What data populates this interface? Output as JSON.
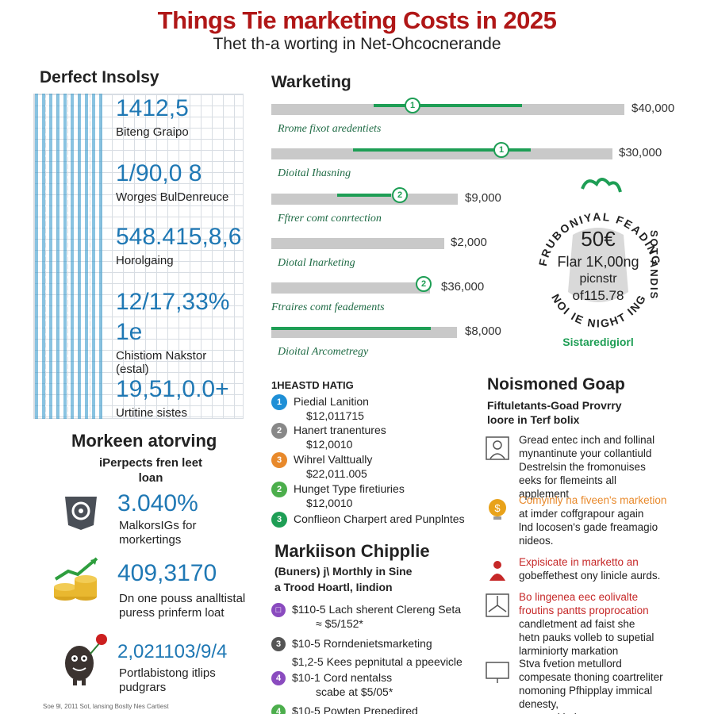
{
  "header": {
    "title": "Things Tie marketing Costs in 2025",
    "subtitle": "Thet th-a worting in Net-Ohcocnerande"
  },
  "left_panel": {
    "title": "Derfect Insolsy",
    "stats": [
      {
        "value": "1412,5",
        "label": "Biteng Graipo"
      },
      {
        "value": "1/90,0 8",
        "label": "Worges BulDenreuce"
      },
      {
        "value": "548.415,8,6",
        "label": "Horolgaing"
      },
      {
        "value": "12/17,33%",
        "label": ""
      },
      {
        "value": "1e",
        "label": "Chistiom Nakstor\n(estal)"
      },
      {
        "value": "19,51,0.0+",
        "label": "Urtitine sistes"
      }
    ]
  },
  "lower_left": {
    "title": "Morkeen atorving",
    "subtitle": "iPerpects fren leet loan",
    "items": [
      {
        "value": "3.040%",
        "label": "MalkorsIGs for\nmorkertings",
        "icon": "gear-badge-icon"
      },
      {
        "value": "409,3170",
        "label": "Dn one pouss analltistal\npuress prinferm loat",
        "icon": "coin-growth-icon"
      },
      {
        "value": "2,021103/9/4",
        "label": "Portlabistong itlips\npudgrars",
        "icon": "mascot-flower-icon"
      }
    ],
    "footnote": "Soe 9l, 2011 Sot, lansing Boslty Nes Cartiest"
  },
  "marketing": {
    "title": "Warketing",
    "bars": [
      {
        "label": "Rrome fixot aredentiets",
        "amount": "$40,000",
        "fill": 0.42,
        "marker": "1"
      },
      {
        "label": "Dioital Ihasning",
        "amount": "$30,000",
        "fill": 0.52,
        "marker": "1"
      },
      {
        "label": "Fftrer comt conrtection",
        "amount": "$9,000",
        "fill": 0.29,
        "marker": "2"
      },
      {
        "label": "Diotal Inarketing",
        "amount": "$2,000",
        "fill": 0.0,
        "marker": ""
      },
      {
        "label": "Ftraires comt feadements",
        "amount": "$36,000",
        "fill": 0.0,
        "marker": "2"
      },
      {
        "label": "Dioital Arcometregy",
        "amount": "$8,000",
        "fill": 0.86,
        "marker": ""
      }
    ]
  },
  "badge": {
    "ring_top": "FRUBONIYAL FEADING",
    "ring_bottom": "NOI IE NIGHT ING",
    "ring_right": "SOT ANDIS",
    "value": "50€",
    "line1": "Flar 1K,00ng",
    "line2": "picnstr",
    "line3": "of115.78",
    "caption": "Sistaredigiorl",
    "accent": "#1e9e55"
  },
  "list": {
    "title": "1HEASTD HATIG",
    "items": [
      {
        "num": "1",
        "name": "Piedial Lanition",
        "amount": "$12,011715",
        "color": "#1f8fd6"
      },
      {
        "num": "2",
        "name": "Hanert tranentures",
        "amount": "$12,0010",
        "color": "#888888"
      },
      {
        "num": "3",
        "name": "Wihrel Valttually",
        "amount": "$22,011.005",
        "color": "#e8892b"
      },
      {
        "num": "2",
        "name": "Hunget Type firetiuries",
        "amount": "$12,0010",
        "color": "#4cae4c"
      },
      {
        "num": "3",
        "name": "Conflieon Charpert ared Punplntes",
        "amount": "",
        "color": "#1e9e55"
      }
    ]
  },
  "marketing_pipeline": {
    "title": "Markiison Chipplie",
    "subtitle_line1": "(Buners) j\\ Morthly in Sine",
    "subtitle_line2": "a Trood Hoartl, Iindion",
    "lines": [
      {
        "marker": "□",
        "text": "$110-5 Lach sherent Clereng Seta",
        "sub": "≈ $5/152*",
        "color": "#8a4bbf"
      },
      {
        "marker": "3",
        "text": "$10-5 Rorndenietsmarketing",
        "sub": "",
        "color": "#555555"
      },
      {
        "marker": "",
        "text": "$1,2-5 Kees pepnitutal a ppeevicle",
        "sub": "",
        "color": "#555555"
      },
      {
        "marker": "4",
        "text": "$10-1 Cord nentalss",
        "sub": "scabe at $5/05*",
        "color": "#8a4bbf"
      },
      {
        "marker": "4",
        "text": "$10-5 Powten Prepedired",
        "sub": "",
        "color": "#4cae4c"
      }
    ]
  },
  "right_panel": {
    "title": "Noismoned Goap",
    "subtitle_line1": "Fiftuletants-Goad Provrry",
    "subtitle_line2": "loore in Terf bolix",
    "items": [
      {
        "icon": "person-frame-icon",
        "lines": [
          "Gread entec inch and follinal",
          "mynantinute your collantiuld",
          "Destrelsin the fromonuises",
          "eeks for flemeints all",
          "applement"
        ],
        "highlight": ""
      },
      {
        "icon": "coin-bulb-icon",
        "lines": [
          "Comyinly na fiveen's marketion",
          "at imder coffgrapour again",
          "lnd locosen's gade freamagio",
          "nideos."
        ],
        "highlight": "Comyinly na fiveen's marketion"
      },
      {
        "icon": "person-heart-icon",
        "lines": [
          "Expisicate in marketto an",
          "gobeffethest ony linicle aurds."
        ],
        "highlight": "Expisicate in marketto an"
      },
      {
        "icon": "fan-icon",
        "lines": [
          "Bo lingenea eec eolivalte",
          "froutins pantts proprocation",
          "candletment ad faist she",
          "hetn pauks volleb to supetial",
          "larminiorty markation"
        ],
        "highlight": "Bo lingenea eec eolivalte\nfroutins pantts proprocation"
      },
      {
        "icon": "monitor-icon",
        "lines": [
          "Stva fvetion metullord",
          "compesate thoning coartreliter",
          "nomoning Pfhipplay immical",
          "denesty,",
          "mar vanitintins"
        ],
        "highlight": "compesate"
      }
    ]
  }
}
